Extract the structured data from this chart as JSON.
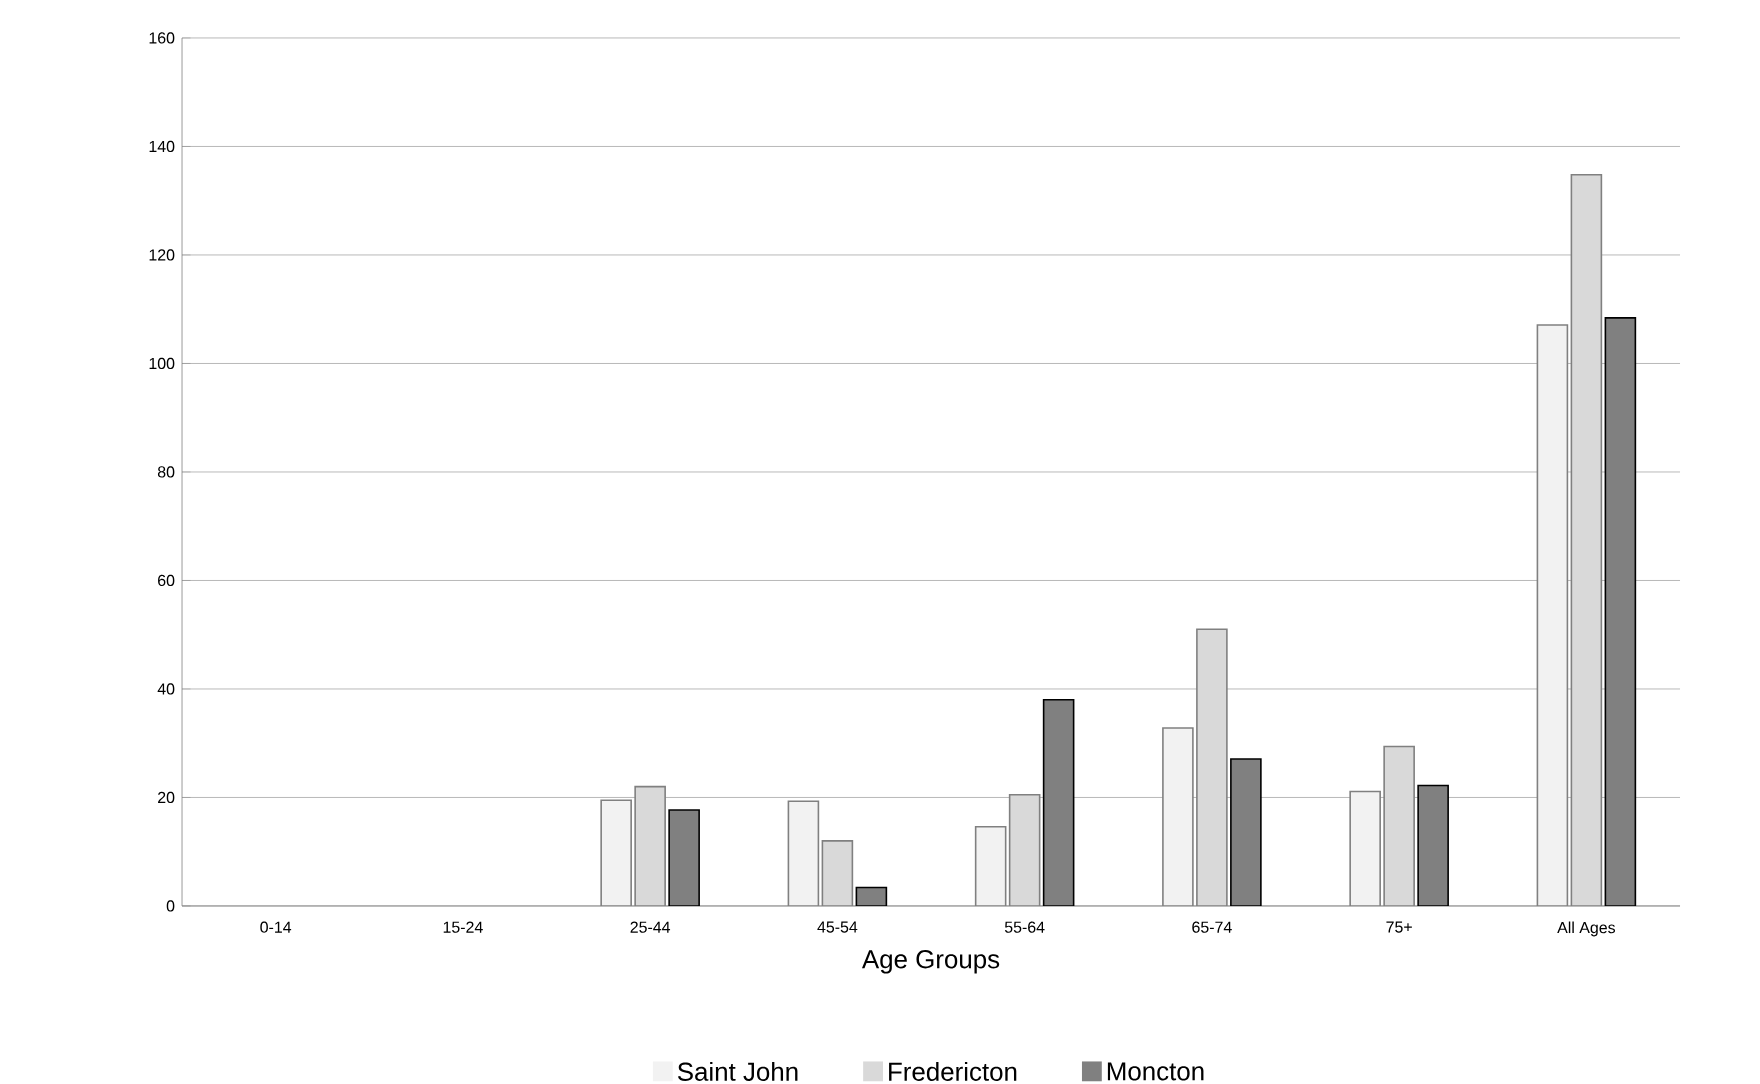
{
  "chart_data": {
    "type": "bar",
    "xlabel": "Age Groups",
    "categories": [
      "0-14",
      "15-24",
      "25-44",
      "45-54",
      "55-64",
      "65-74",
      "75+",
      "All Ages"
    ],
    "series": [
      {
        "name": "Saint John",
        "color": "#f2f2f2",
        "values": [
          null,
          null,
          19.5,
          19.3,
          14.6,
          32.8,
          21.1,
          107.1
        ]
      },
      {
        "name": "Fredericton",
        "color": "#d9d9d9",
        "values": [
          null,
          null,
          22,
          12,
          20.5,
          51,
          29.4,
          134.8
        ]
      },
      {
        "name": "Moncton",
        "color": "#808080",
        "values": [
          null,
          null,
          17.7,
          3.4,
          38,
          27.1,
          22.2,
          108.4
        ]
      }
    ],
    "ylim": [
      0,
      160
    ],
    "yticks": [
      0,
      20,
      40,
      60,
      80,
      100,
      120,
      140,
      160
    ],
    "grid": "y",
    "legend": "bottom"
  }
}
